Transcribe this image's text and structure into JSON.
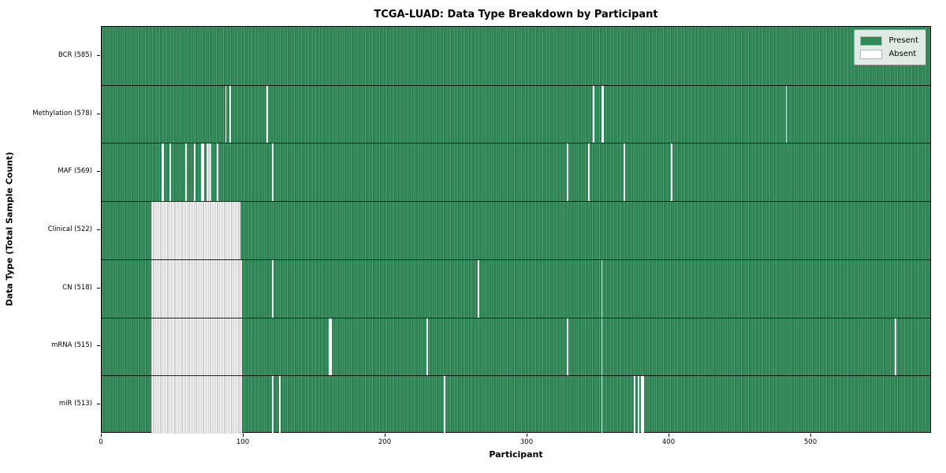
{
  "chart_data": {
    "type": "heatmap",
    "title": "TCGA-LUAD: Data Type Breakdown by Participant",
    "xlabel": "Participant",
    "ylabel": "Data Type (Total Sample Count)",
    "n_participants": 585,
    "x_ticks": [
      0,
      100,
      200,
      300,
      400,
      500
    ],
    "grid": false,
    "legend_position": "upper right",
    "colors": {
      "present": "#2e8b57",
      "absent": "#ffffff"
    },
    "legend": [
      {
        "label": "Present",
        "color": "#2e8b57"
      },
      {
        "label": "Absent",
        "color": "#ffffff"
      }
    ],
    "rows": [
      {
        "label": "BCR (585)",
        "present": 585,
        "absent_count": 0,
        "absent_ranges": []
      },
      {
        "label": "Methylation (578)",
        "present": 578,
        "absent_count": 7,
        "absent_ranges": [
          [
            87,
            87
          ],
          [
            90,
            90
          ],
          [
            116,
            116
          ],
          [
            346,
            346
          ],
          [
            352,
            353
          ],
          [
            482,
            482
          ]
        ]
      },
      {
        "label": "MAF (569)",
        "present": 569,
        "absent_count": 16,
        "absent_ranges": [
          [
            42,
            43
          ],
          [
            48,
            48
          ],
          [
            59,
            59
          ],
          [
            65,
            65
          ],
          [
            70,
            71
          ],
          [
            74,
            76
          ],
          [
            81,
            81
          ],
          [
            120,
            120
          ],
          [
            328,
            328
          ],
          [
            343,
            343
          ],
          [
            368,
            368
          ],
          [
            401,
            401
          ]
        ]
      },
      {
        "label": "Clinical (522)",
        "present": 522,
        "absent_count": 63,
        "absent_ranges": [
          [
            35,
            97
          ]
        ]
      },
      {
        "label": "CN (518)",
        "present": 518,
        "absent_count": 67,
        "absent_ranges": [
          [
            35,
            98
          ],
          [
            120,
            120
          ],
          [
            265,
            265
          ],
          [
            352,
            352
          ]
        ]
      },
      {
        "label": "mRNA (515)",
        "present": 515,
        "absent_count": 70,
        "absent_ranges": [
          [
            35,
            98
          ],
          [
            160,
            161
          ],
          [
            229,
            229
          ],
          [
            328,
            328
          ],
          [
            352,
            352
          ],
          [
            559,
            559
          ]
        ]
      },
      {
        "label": "miR (513)",
        "present": 513,
        "absent_count": 72,
        "absent_ranges": [
          [
            35,
            98
          ],
          [
            120,
            120
          ],
          [
            125,
            125
          ],
          [
            241,
            241
          ],
          [
            352,
            352
          ],
          [
            375,
            375
          ],
          [
            378,
            378
          ],
          [
            380,
            381
          ]
        ]
      }
    ]
  }
}
